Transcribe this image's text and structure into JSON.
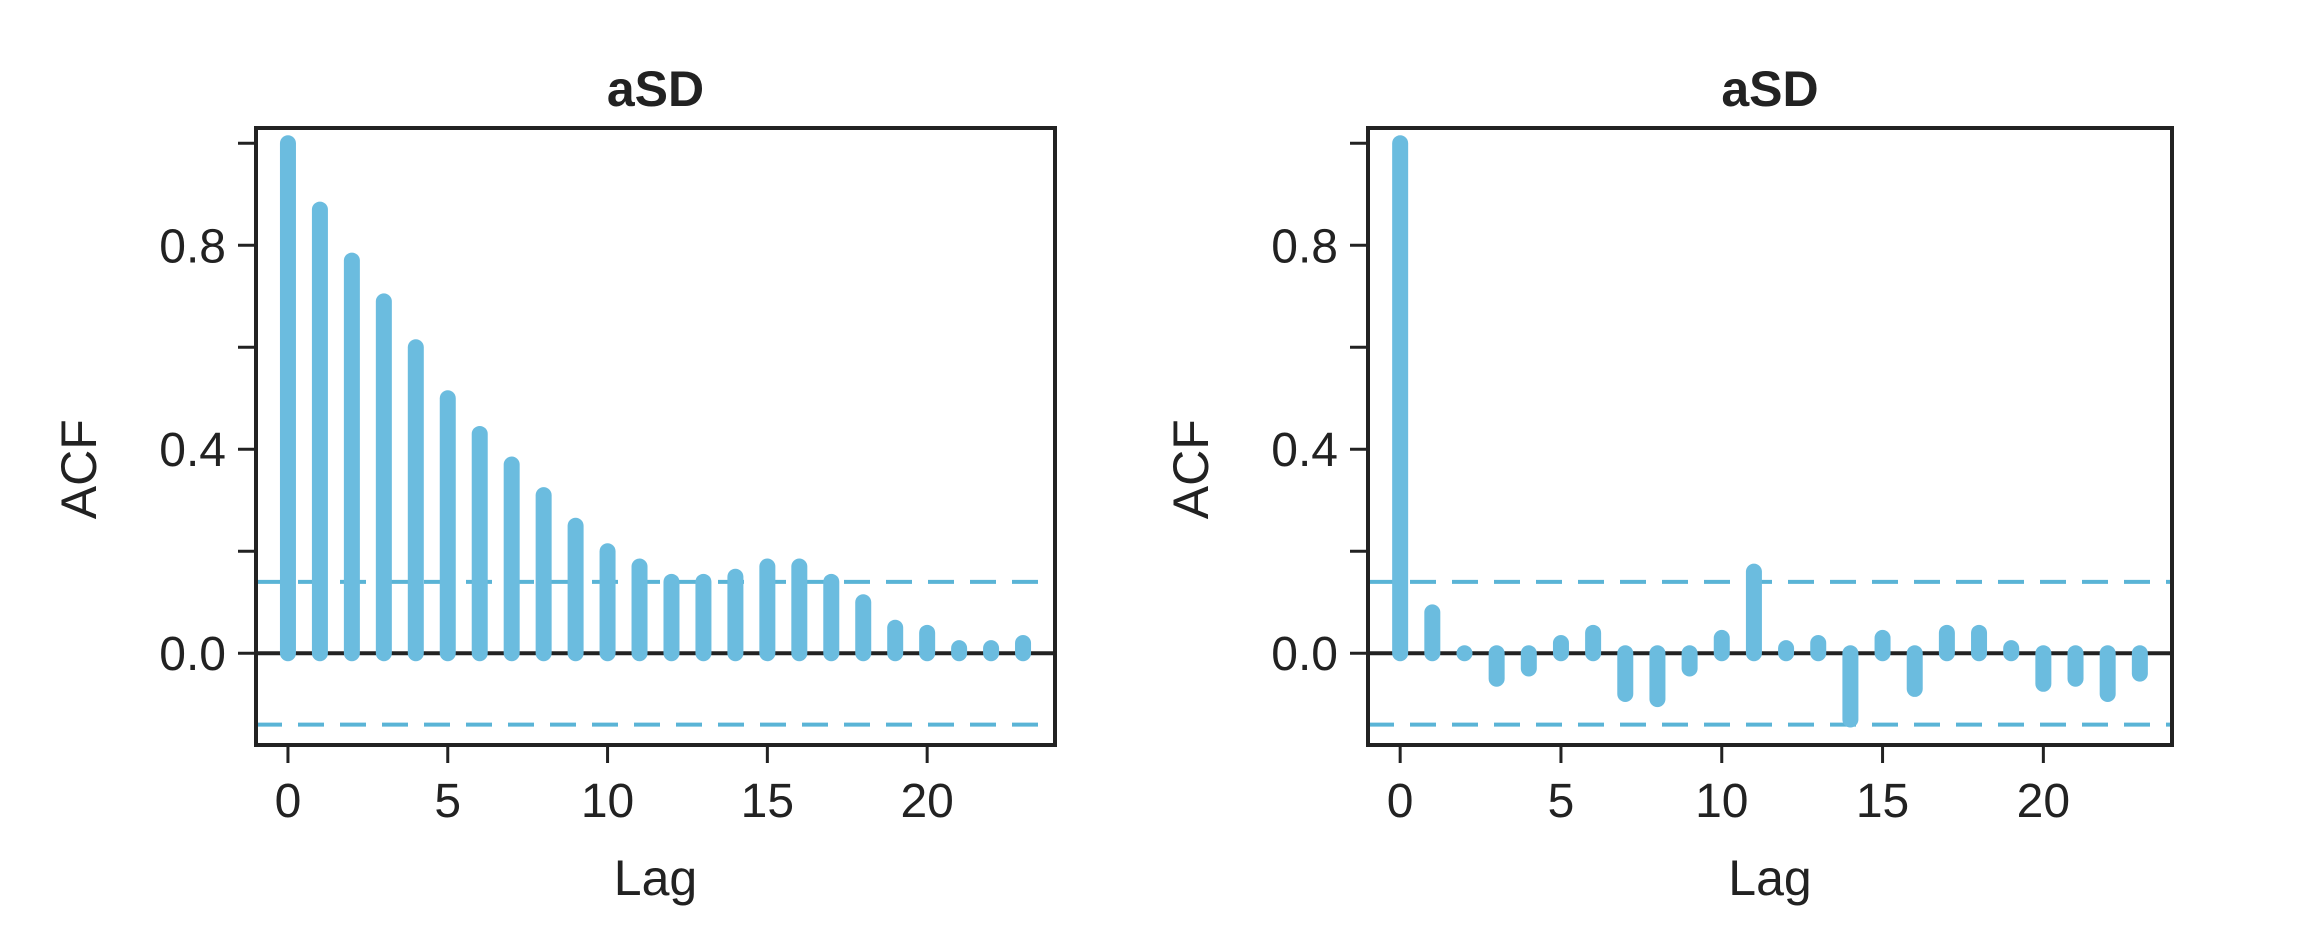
{
  "chart_data": [
    {
      "type": "bar",
      "title": "aSD",
      "xlabel": "Lag",
      "ylabel": "ACF",
      "xlim": [
        -1,
        24
      ],
      "ylim": [
        -0.18,
        1.03
      ],
      "x_ticks": [
        0,
        5,
        10,
        15,
        20
      ],
      "y_ticks": [
        0.0,
        0.2,
        0.4,
        0.6,
        0.8,
        1.0
      ],
      "y_tick_labels": [
        "0.0",
        "",
        "0.4",
        "",
        "0.8",
        ""
      ],
      "confidence_bound": 0.14,
      "lags": [
        0,
        1,
        2,
        3,
        4,
        5,
        6,
        7,
        8,
        9,
        10,
        11,
        12,
        13,
        14,
        15,
        16,
        17,
        18,
        19,
        20,
        21,
        22,
        23
      ],
      "values": [
        1.0,
        0.87,
        0.77,
        0.69,
        0.6,
        0.5,
        0.43,
        0.37,
        0.31,
        0.25,
        0.2,
        0.17,
        0.14,
        0.14,
        0.15,
        0.17,
        0.17,
        0.14,
        0.1,
        0.05,
        0.04,
        0.01,
        0.01,
        0.02
      ],
      "colors": {
        "bars": "#6bbcdf",
        "confidence": "#5ab4d6",
        "axis": "#222222"
      }
    },
    {
      "type": "bar",
      "title": "aSD",
      "xlabel": "Lag",
      "ylabel": "ACF",
      "xlim": [
        -1,
        24
      ],
      "ylim": [
        -0.18,
        1.03
      ],
      "x_ticks": [
        0,
        5,
        10,
        15,
        20
      ],
      "y_ticks": [
        0.0,
        0.2,
        0.4,
        0.6,
        0.8,
        1.0
      ],
      "y_tick_labels": [
        "0.0",
        "",
        "0.4",
        "",
        "0.8",
        ""
      ],
      "confidence_bound": 0.14,
      "lags": [
        0,
        1,
        2,
        3,
        4,
        5,
        6,
        7,
        8,
        9,
        10,
        11,
        12,
        13,
        14,
        15,
        16,
        17,
        18,
        19,
        20,
        21,
        22,
        23
      ],
      "values": [
        1.0,
        0.08,
        0.0,
        -0.05,
        -0.03,
        0.02,
        0.04,
        -0.08,
        -0.09,
        -0.03,
        0.03,
        0.16,
        0.01,
        0.02,
        -0.13,
        0.03,
        -0.07,
        0.04,
        0.04,
        0.01,
        -0.06,
        -0.05,
        -0.08,
        -0.04
      ],
      "colors": {
        "bars": "#6bbcdf",
        "confidence": "#5ab4d6",
        "axis": "#222222"
      }
    }
  ]
}
